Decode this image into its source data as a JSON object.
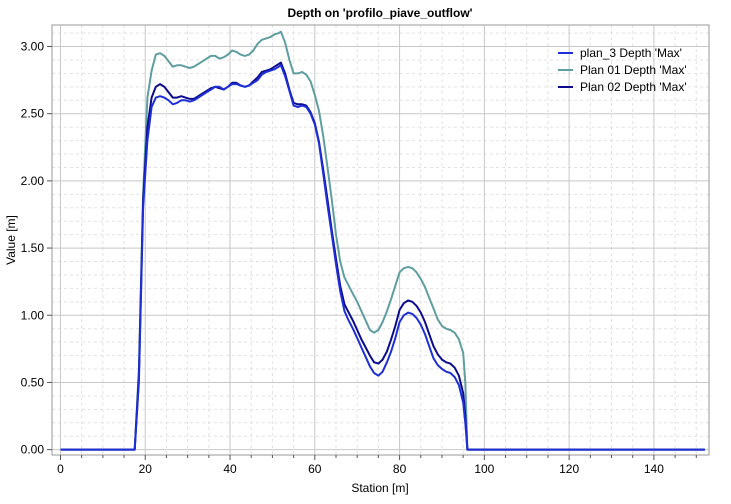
{
  "chart_data": {
    "type": "line",
    "title": "Depth on 'profilo_piave_outflow'",
    "xlabel": "Station [m]",
    "ylabel": "Value [m]",
    "xlim": [
      -2,
      153
    ],
    "ylim": [
      -0.04,
      3.16
    ],
    "xticks": [
      0,
      20,
      40,
      60,
      80,
      100,
      120,
      140
    ],
    "xtick_labels": [
      "0",
      "20",
      "40",
      "60",
      "80",
      "100",
      "120",
      "140"
    ],
    "yticks": [
      0,
      0.5,
      1.0,
      1.5,
      2.0,
      2.5,
      3.0
    ],
    "ytick_labels": [
      "0.00",
      "0.50",
      "1.00",
      "1.50",
      "2.00",
      "2.50",
      "3.00"
    ],
    "grid": true,
    "legend_position": "top-right",
    "colors": {
      "plan_3": "#1f2fd6",
      "plan_01": "#5f9ea0",
      "plan_02": "#0b0b8c",
      "grid_major": "#c8c8c8",
      "grid_minor": "#e2e2e2"
    },
    "series": [
      {
        "name": "plan_3 Depth 'Max'",
        "x": [
          0,
          17.5,
          18.5,
          19.5,
          20.5,
          21.5,
          22.5,
          23.5,
          24.5,
          25.5,
          26.5,
          27.5,
          28.5,
          29.5,
          30.5,
          31.5,
          32.5,
          33.5,
          34.5,
          35.5,
          36.5,
          37.5,
          38.5,
          39.5,
          40.5,
          41.5,
          42.5,
          43.5,
          44.5,
          45.5,
          46.5,
          47.5,
          48.5,
          49.5,
          50.5,
          51.5,
          52,
          53,
          54,
          55,
          56,
          57,
          58,
          59,
          60,
          61,
          62,
          63,
          64,
          65,
          66,
          67,
          68,
          69,
          70,
          71,
          72,
          73,
          74,
          75,
          76,
          77,
          78,
          79,
          80,
          81,
          82,
          83,
          84,
          85,
          86,
          87,
          88,
          89,
          90,
          91,
          92,
          93,
          94,
          95,
          95.5,
          96,
          100,
          120,
          140,
          152
        ],
        "y": [
          0,
          0,
          0.5,
          1.8,
          2.3,
          2.55,
          2.62,
          2.63,
          2.62,
          2.6,
          2.57,
          2.58,
          2.6,
          2.6,
          2.59,
          2.6,
          2.62,
          2.64,
          2.66,
          2.68,
          2.7,
          2.7,
          2.68,
          2.7,
          2.72,
          2.72,
          2.71,
          2.7,
          2.71,
          2.73,
          2.75,
          2.79,
          2.81,
          2.82,
          2.83,
          2.85,
          2.86,
          2.78,
          2.67,
          2.56,
          2.55,
          2.56,
          2.55,
          2.5,
          2.42,
          2.28,
          2.05,
          1.82,
          1.6,
          1.38,
          1.18,
          1.03,
          0.96,
          0.9,
          0.83,
          0.76,
          0.69,
          0.62,
          0.57,
          0.55,
          0.58,
          0.65,
          0.73,
          0.83,
          0.95,
          1.0,
          1.02,
          1.01,
          0.98,
          0.93,
          0.86,
          0.77,
          0.68,
          0.63,
          0.6,
          0.58,
          0.57,
          0.54,
          0.48,
          0.35,
          0.2,
          0,
          0,
          0,
          0,
          0
        ]
      },
      {
        "name": "Plan 01 Depth 'Max'",
        "x": [
          0,
          17.5,
          18.5,
          19.5,
          20.5,
          21.5,
          22.5,
          23.5,
          24.5,
          25.5,
          26.5,
          27.5,
          28.5,
          29.5,
          30.5,
          31.5,
          32.5,
          33.5,
          34.5,
          35.5,
          36.5,
          37.5,
          38.5,
          39.5,
          40.5,
          41.5,
          42.5,
          43.5,
          44.5,
          45.5,
          46.5,
          47.5,
          48.5,
          49.5,
          50.5,
          51.5,
          52,
          53,
          54,
          55,
          56,
          57,
          58,
          59,
          60,
          61,
          62,
          63,
          64,
          65,
          66,
          67,
          68,
          69,
          70,
          71,
          72,
          73,
          74,
          75,
          76,
          77,
          78,
          79,
          80,
          81,
          82,
          83,
          84,
          85,
          86,
          87,
          88,
          89,
          90,
          91,
          92,
          93,
          94,
          95,
          95.5,
          96,
          100,
          120,
          140,
          152
        ],
        "y": [
          0,
          0,
          0.6,
          1.9,
          2.62,
          2.82,
          2.94,
          2.95,
          2.93,
          2.89,
          2.85,
          2.86,
          2.86,
          2.85,
          2.84,
          2.85,
          2.87,
          2.89,
          2.91,
          2.93,
          2.93,
          2.91,
          2.92,
          2.94,
          2.97,
          2.96,
          2.94,
          2.93,
          2.94,
          2.97,
          3.02,
          3.05,
          3.06,
          3.07,
          3.09,
          3.1,
          3.11,
          3.03,
          2.9,
          2.8,
          2.8,
          2.81,
          2.79,
          2.74,
          2.64,
          2.52,
          2.33,
          2.1,
          1.86,
          1.6,
          1.4,
          1.28,
          1.22,
          1.16,
          1.1,
          1.03,
          0.96,
          0.89,
          0.87,
          0.89,
          0.95,
          1.03,
          1.12,
          1.22,
          1.32,
          1.35,
          1.36,
          1.35,
          1.32,
          1.27,
          1.21,
          1.13,
          1.05,
          0.97,
          0.92,
          0.9,
          0.89,
          0.87,
          0.82,
          0.72,
          0.5,
          0,
          0,
          0,
          0,
          0
        ]
      },
      {
        "name": "Plan 02 Depth 'Max'",
        "x": [
          0,
          17.5,
          18.5,
          19.5,
          20.5,
          21.5,
          22.5,
          23.5,
          24.5,
          25.5,
          26.5,
          27.5,
          28.5,
          29.5,
          30.5,
          31.5,
          32.5,
          33.5,
          34.5,
          35.5,
          36.5,
          37.5,
          38.5,
          39.5,
          40.5,
          41.5,
          42.5,
          43.5,
          44.5,
          45.5,
          46.5,
          47.5,
          48.5,
          49.5,
          50.5,
          51.5,
          52,
          53,
          54,
          55,
          56,
          57,
          58,
          59,
          60,
          61,
          62,
          63,
          64,
          65,
          66,
          67,
          68,
          69,
          70,
          71,
          72,
          73,
          74,
          75,
          76,
          77,
          78,
          79,
          80,
          81,
          82,
          83,
          84,
          85,
          86,
          87,
          88,
          89,
          90,
          91,
          92,
          93,
          94,
          95,
          95.5,
          96,
          100,
          120,
          140,
          152
        ],
        "y": [
          0,
          0,
          0.55,
          1.85,
          2.4,
          2.62,
          2.7,
          2.72,
          2.7,
          2.66,
          2.62,
          2.62,
          2.63,
          2.62,
          2.61,
          2.61,
          2.63,
          2.65,
          2.67,
          2.69,
          2.7,
          2.69,
          2.68,
          2.7,
          2.73,
          2.73,
          2.71,
          2.7,
          2.71,
          2.74,
          2.77,
          2.81,
          2.82,
          2.83,
          2.85,
          2.87,
          2.88,
          2.8,
          2.68,
          2.58,
          2.57,
          2.57,
          2.56,
          2.51,
          2.43,
          2.29,
          2.08,
          1.86,
          1.63,
          1.42,
          1.22,
          1.08,
          1.02,
          0.96,
          0.89,
          0.82,
          0.76,
          0.7,
          0.65,
          0.64,
          0.67,
          0.73,
          0.82,
          0.92,
          1.04,
          1.09,
          1.11,
          1.1,
          1.07,
          1.02,
          0.95,
          0.86,
          0.77,
          0.71,
          0.67,
          0.65,
          0.64,
          0.61,
          0.55,
          0.42,
          0.25,
          0,
          0,
          0,
          0,
          0
        ]
      }
    ]
  }
}
